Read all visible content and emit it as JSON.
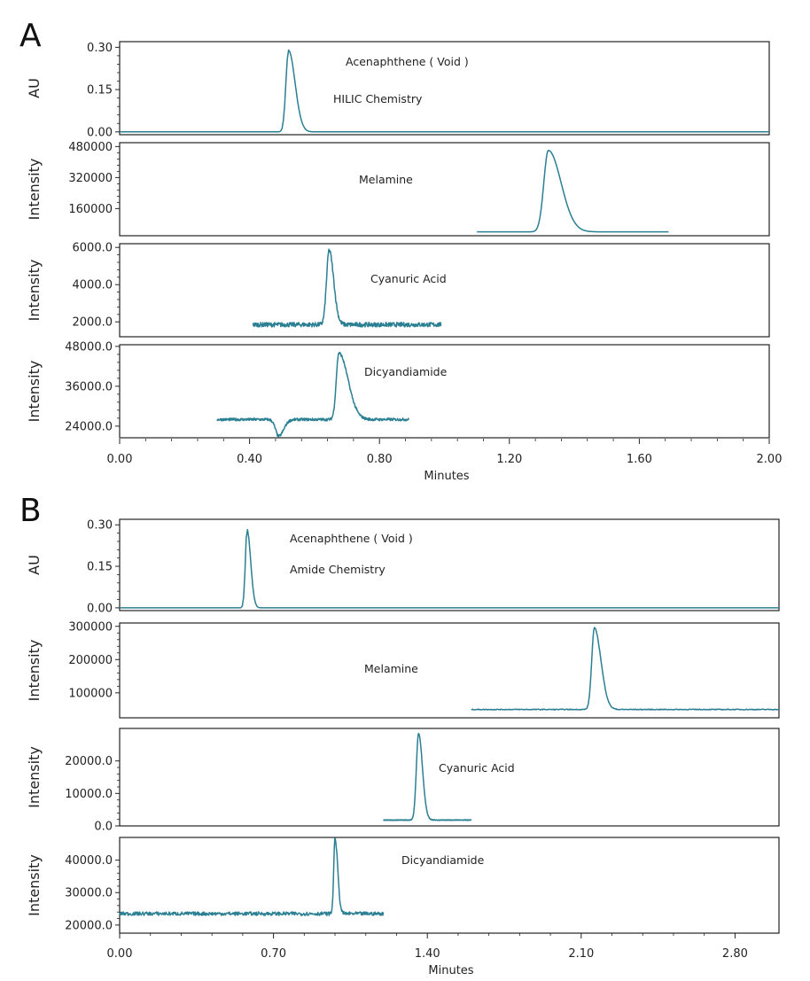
{
  "chart_data": [
    {
      "type": "line",
      "panel_label": "A",
      "xlabel": "Minutes",
      "xlim": [
        0,
        2.0
      ],
      "xticks": [
        "0.00",
        "0.40",
        "0.80",
        "1.20",
        "1.60",
        "2.00"
      ],
      "xtick_values": [
        0,
        0.4,
        0.8,
        1.2,
        1.6,
        2.0
      ],
      "traces": [
        {
          "ylabel": "AU",
          "ylim": [
            -0.01,
            0.32
          ],
          "yticks": [
            "0.30",
            "0.15",
            "0.00"
          ],
          "ytick_values": [
            0.3,
            0.15,
            0.0
          ],
          "annotations": [
            "Acenaphthene ( Void )",
            "HILIC Chemistry"
          ],
          "x_range": [
            0,
            2.0
          ],
          "baseline": 0.0,
          "noise": 0.0,
          "peaks": [
            {
              "center": 0.52,
              "height": 0.29,
              "width": 0.008,
              "tail": 0.012
            }
          ]
        },
        {
          "ylabel": "Intensity",
          "ylim": [
            20000,
            500000
          ],
          "yticks": [
            "480000",
            "320000",
            "160000"
          ],
          "ytick_values": [
            480000,
            320000,
            160000
          ],
          "annotations": [
            "Melamine"
          ],
          "x_range": [
            1.1,
            1.69
          ],
          "baseline": 40000,
          "noise": 0,
          "peaks": [
            {
              "center": 1.32,
              "height": 420000,
              "width": 0.014,
              "tail": 0.025
            }
          ]
        },
        {
          "ylabel": "Intensity",
          "ylim": [
            1200,
            6200
          ],
          "yticks": [
            "6000.0",
            "4000.0",
            "2000.0"
          ],
          "ytick_values": [
            6000,
            4000,
            2000
          ],
          "annotations": [
            "Cyanuric Acid"
          ],
          "x_range": [
            0.41,
            0.99
          ],
          "baseline": 1850,
          "noise": 150,
          "peaks": [
            {
              "center": 0.645,
              "height": 4000,
              "width": 0.008,
              "tail": 0.006
            }
          ]
        },
        {
          "ylabel": "Intensity",
          "ylim": [
            20500,
            48500
          ],
          "yticks": [
            "48000.0",
            "36000.0",
            "24000.0"
          ],
          "ytick_values": [
            48000,
            36000,
            24000
          ],
          "annotations": [
            "Dicyandiamide"
          ],
          "x_range": [
            0.3,
            0.89
          ],
          "baseline": 26000,
          "noise": 500,
          "peaks": [
            {
              "center": 0.675,
              "height": 20000,
              "width": 0.008,
              "tail": 0.02
            },
            {
              "center": 0.49,
              "height": -5000,
              "width": 0.01,
              "tail": 0.005
            }
          ]
        }
      ]
    },
    {
      "type": "line",
      "panel_label": "B",
      "xlabel": "Minutes",
      "xlim": [
        0,
        3.0
      ],
      "xticks": [
        "0.00",
        "0.70",
        "1.40",
        "2.10",
        "2.80"
      ],
      "xtick_values": [
        0,
        0.7,
        1.4,
        2.1,
        2.8
      ],
      "traces": [
        {
          "ylabel": "AU",
          "ylim": [
            -0.01,
            0.32
          ],
          "yticks": [
            "0.30",
            "0.15",
            "0.00"
          ],
          "ytick_values": [
            0.3,
            0.15,
            0.0
          ],
          "annotations": [
            "Acenaphthene ( Void )",
            "Amide Chemistry"
          ],
          "x_range": [
            0,
            3.0
          ],
          "baseline": 0.0,
          "noise": 0.0,
          "peaks": [
            {
              "center": 0.58,
              "height": 0.285,
              "width": 0.008,
              "tail": 0.008
            }
          ]
        },
        {
          "ylabel": "Intensity",
          "ylim": [
            25000,
            310000
          ],
          "yticks": [
            "300000",
            "200000",
            "100000"
          ],
          "ytick_values": [
            300000,
            200000,
            100000
          ],
          "annotations": [
            "Melamine"
          ],
          "x_range": [
            1.6,
            3.0
          ],
          "baseline": 50000,
          "noise": 1500,
          "peaks": [
            {
              "center": 2.16,
              "height": 245000,
              "width": 0.012,
              "tail": 0.018
            }
          ]
        },
        {
          "ylabel": "Intensity",
          "ylim": [
            0,
            30000
          ],
          "yticks": [
            "20000.0",
            "10000.0",
            "0.0"
          ],
          "ytick_values": [
            20000,
            10000,
            0
          ],
          "annotations": [
            "Cyanuric Acid"
          ],
          "x_range": [
            1.2,
            1.6
          ],
          "baseline": 1800,
          "noise": 120,
          "peaks": [
            {
              "center": 1.36,
              "height": 26600,
              "width": 0.01,
              "tail": 0.008
            }
          ]
        },
        {
          "ylabel": "Intensity",
          "ylim": [
            17500,
            47000
          ],
          "yticks": [
            "40000.0",
            "30000.0",
            "20000.0"
          ],
          "ytick_values": [
            40000,
            30000,
            20000
          ],
          "annotations": [
            "Dicyandiamide"
          ],
          "x_range": [
            0,
            1.2
          ],
          "baseline": 23500,
          "noise": 700,
          "peaks": [
            {
              "center": 0.98,
              "height": 23500,
              "width": 0.006,
              "tail": 0.006
            }
          ]
        }
      ]
    }
  ]
}
